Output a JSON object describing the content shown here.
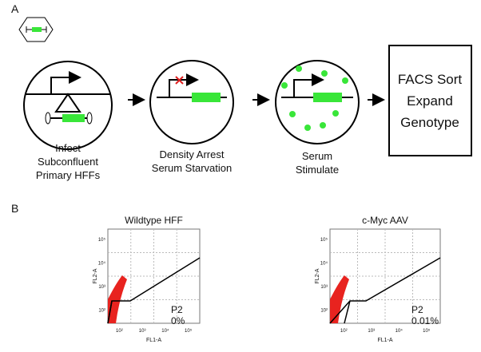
{
  "panel_a": {
    "label": "A",
    "steps": [
      {
        "lines": [
          "Infect",
          "Subconfluent",
          "Primary HFFs"
        ]
      },
      {
        "lines": [
          "Density Arrest",
          "Serum Starvation"
        ]
      },
      {
        "lines": [
          "Serum",
          "Stimulate"
        ]
      }
    ],
    "final_box": {
      "lines": [
        "FACS Sort",
        "Expand",
        "Genotype"
      ]
    }
  },
  "panel_b": {
    "label": "B",
    "plots": [
      {
        "title": "Wildtype HFF",
        "gate": "P2",
        "percent": "0%",
        "x_label": "FL1-A",
        "y_label": "FL2-A",
        "x_ticks": [
          "10²",
          "10³",
          "10⁴",
          "10⁵"
        ],
        "y_ticks": [
          "10²",
          "10³",
          "10⁴",
          "10⁵"
        ]
      },
      {
        "title": "c-Myc AAV",
        "gate": "P2",
        "percent": "0.01%",
        "x_label": "FL1-A",
        "y_label": "FL2-A",
        "x_ticks": [
          "10²",
          "10³",
          "10⁴",
          "10⁵"
        ],
        "y_ticks": [
          "10²",
          "10³",
          "10⁴",
          "10⁵"
        ]
      }
    ]
  }
}
